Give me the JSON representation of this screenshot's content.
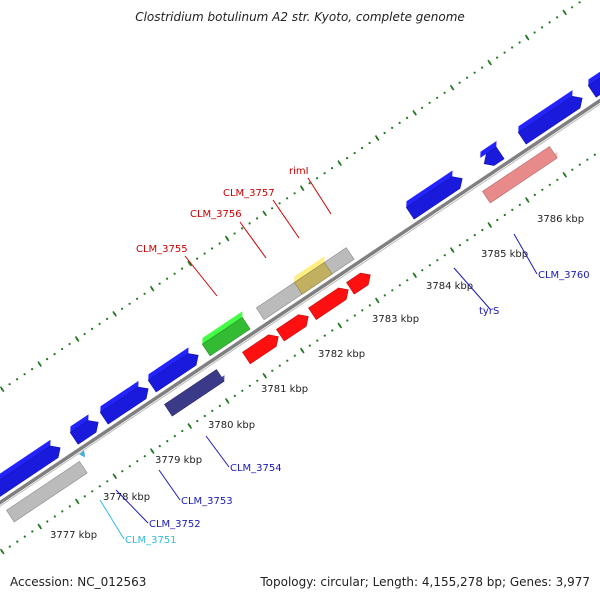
{
  "map": {
    "title": "Clostridium botulinum A2 str. Kyoto, complete genome",
    "accession_text": "Accession: NC_012563",
    "stats_text": "Topology: circular; Length: 4,155,278 bp; Genes: 3,977",
    "scale_labels": [
      "3777 kbp",
      "3778 kbp",
      "3779 kbp",
      "3780 kbp",
      "3781 kbp",
      "3782 kbp",
      "3783 kbp",
      "3784 kbp",
      "3785 kbp",
      "3786 kbp"
    ],
    "gene_labels": [
      {
        "text": "CLM_3755",
        "color": "#cc0000"
      },
      {
        "text": "CLM_3756",
        "color": "#cc0000"
      },
      {
        "text": "CLM_3757",
        "color": "#cc0000"
      },
      {
        "text": "rimI",
        "color": "#cc0000"
      },
      {
        "text": "tyrS",
        "color": "#1a1ab8"
      },
      {
        "text": "CLM_3760",
        "color": "#1a1ab8"
      },
      {
        "text": "CLM_3754",
        "color": "#1a1ab8"
      },
      {
        "text": "CLM_3753",
        "color": "#1a1ab8"
      },
      {
        "text": "CLM_3752",
        "color": "#1a1ab8"
      },
      {
        "text": "CLM_3751",
        "color": "#33bbdd"
      }
    ],
    "colors": {
      "forward_gene": "#1a1adc",
      "rna_gene": "#ff1010",
      "rrna_gene": "#e88a8a",
      "pseudo_gene": "#bbbbbb",
      "green_gene": "#33bb33",
      "orange_gene": "#ee8800",
      "dark_gene": "#3a3a88",
      "olive_gene": "#c0b060",
      "cyan_gene": "#44aadd",
      "backbone": "#808080",
      "ticks": "#227722"
    }
  }
}
